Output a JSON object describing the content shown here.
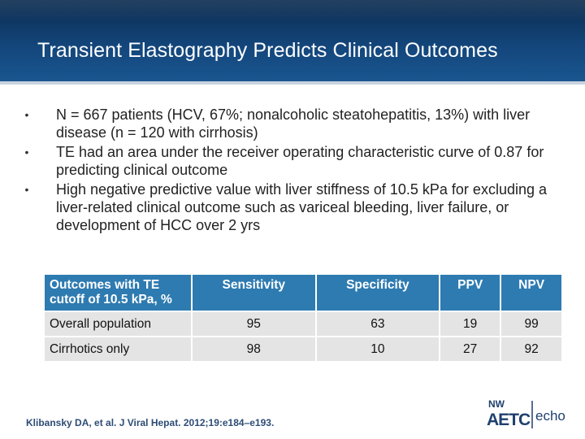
{
  "slide": {
    "title": "Transient Elastography Predicts Clinical Outcomes"
  },
  "bullets": [
    "N = 667 patients (HCV, 67%; nonalcoholic steatohepatitis, 13%) with liver disease (n = 120 with cirrhosis)",
    "TE had an area under the receiver operating characteristic curve of 0.87 for predicting clinical outcome",
    "High negative predictive value with liver stiffness of 10.5 kPa for excluding a liver-related clinical outcome such as variceal bleeding, liver failure, or development of HCC over 2 yrs"
  ],
  "bullet_glyph": "•",
  "table": {
    "headers": [
      "Outcomes with TE cutoff of 10.5 kPa, %",
      "Sensitivity",
      "Specificity",
      "PPV",
      "NPV"
    ],
    "rows": [
      [
        "Overall population",
        "95",
        "63",
        "19",
        "99"
      ],
      [
        "Cirrhotics only",
        "98",
        "10",
        "27",
        "92"
      ]
    ]
  },
  "citation": "Klibansky DA, et al. J Viral Hepat. 2012;19:e184–e193.",
  "logo": {
    "top_text": "NW",
    "main_text": "AETC",
    "echo_text": "echo"
  },
  "colors": {
    "title_bar": "#13457a",
    "table_header": "#2e7bb1",
    "table_cell": "#e4e4e4",
    "citation": "#2d4c75"
  }
}
